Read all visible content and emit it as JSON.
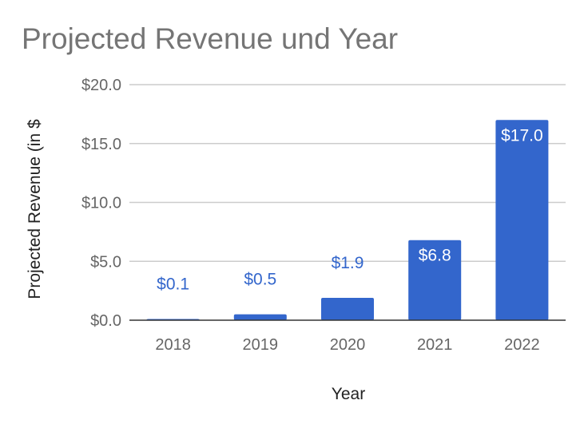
{
  "chart_data": {
    "type": "bar",
    "title": "Projected Revenue und Year",
    "xlabel": "Year",
    "ylabel": "Projected Revenue (in $",
    "categories": [
      "2018",
      "2019",
      "2020",
      "2021",
      "2022"
    ],
    "values": [
      0.1,
      0.5,
      1.9,
      6.8,
      17.0
    ],
    "data_labels": [
      "$0.1",
      "$0.5",
      "$1.9",
      "$6.8",
      "$17.0"
    ],
    "ylim": [
      0,
      20
    ],
    "yticks": [
      0,
      5,
      10,
      15,
      20
    ],
    "ytick_labels": [
      "$0.0",
      "$5.0",
      "$10.0",
      "$15.0",
      "$20.0"
    ],
    "grid": true,
    "legend": "none",
    "colors": {
      "bar": "#3366cc",
      "label_outside": "#3366cc",
      "label_inside": "#ffffff",
      "grid": "#cccccc",
      "axis": "#333333",
      "tick_text": "#666666"
    }
  }
}
